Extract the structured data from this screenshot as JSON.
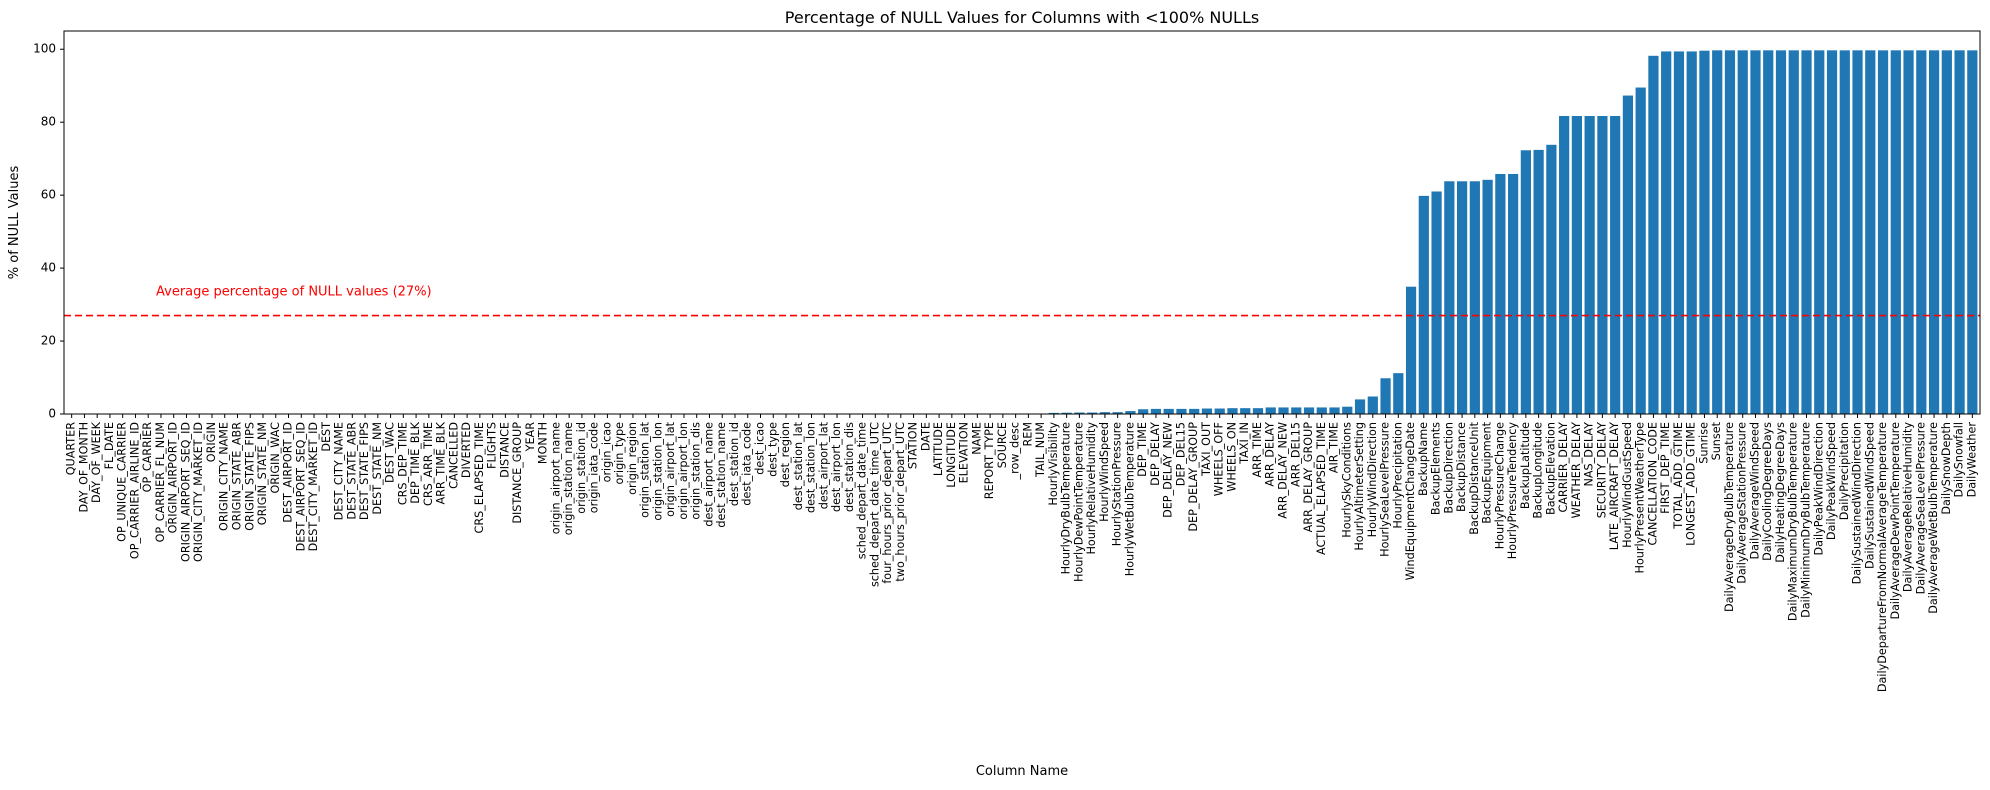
{
  "chart_data": {
    "type": "bar",
    "title": "Percentage of NULL Values for Columns with <100% NULLs",
    "xlabel": "Column Name",
    "ylabel": "% of NULL Values",
    "ylim": [
      0,
      105
    ],
    "yticks": [
      0,
      20,
      40,
      60,
      80,
      100
    ],
    "grid": false,
    "bar_color": "#1f77b4",
    "reference_line": {
      "value": 27,
      "style": "dashed",
      "color": "#ff0000",
      "label": "Average percentage of NULL values (27%)"
    },
    "categories": [
      "QUARTER",
      "DAY_OF_MONTH",
      "DAY_OF_WEEK",
      "FL_DATE",
      "OP_UNIQUE_CARRIER",
      "OP_CARRIER_AIRLINE_ID",
      "OP_CARRIER",
      "OP_CARRIER_FL_NUM",
      "ORIGIN_AIRPORT_ID",
      "ORIGIN_AIRPORT_SEQ_ID",
      "ORIGIN_CITY_MARKET_ID",
      "ORIGIN",
      "ORIGIN_CITY_NAME",
      "ORIGIN_STATE_ABR",
      "ORIGIN_STATE_FIPS",
      "ORIGIN_STATE_NM",
      "ORIGIN_WAC",
      "DEST_AIRPORT_ID",
      "DEST_AIRPORT_SEQ_ID",
      "DEST_CITY_MARKET_ID",
      "DEST",
      "DEST_CITY_NAME",
      "DEST_STATE_ABR",
      "DEST_STATE_FIPS",
      "DEST_STATE_NM",
      "DEST_WAC",
      "CRS_DEP_TIME",
      "DEP_TIME_BLK",
      "CRS_ARR_TIME",
      "ARR_TIME_BLK",
      "CANCELLED",
      "DIVERTED",
      "CRS_ELAPSED_TIME",
      "FLIGHTS",
      "DISTANCE",
      "DISTANCE_GROUP",
      "YEAR",
      "MONTH",
      "origin_airport_name",
      "origin_station_name",
      "origin_station_id",
      "origin_iata_code",
      "origin_icao",
      "origin_type",
      "origin_region",
      "origin_station_lat",
      "origin_station_lon",
      "origin_airport_lat",
      "origin_airport_lon",
      "origin_station_dis",
      "dest_airport_name",
      "dest_station_name",
      "dest_station_id",
      "dest_iata_code",
      "dest_icao",
      "dest_type",
      "dest_region",
      "dest_station_lat",
      "dest_station_lon",
      "dest_airport_lat",
      "dest_airport_lon",
      "dest_station_dis",
      "sched_depart_date_time",
      "sched_depart_date_time_UTC",
      "four_hours_prior_depart_UTC",
      "two_hours_prior_depart_UTC",
      "STATION",
      "DATE",
      "LATITUDE",
      "LONGITUDE",
      "ELEVATION",
      "NAME",
      "REPORT_TYPE",
      "SOURCE",
      "_row_desc",
      "REM",
      "TAIL_NUM",
      "HourlyVisibility",
      "HourlyDryBulbTemperature",
      "HourlyDewPointTemperature",
      "HourlyRelativeHumidity",
      "HourlyWindSpeed",
      "HourlyStationPressure",
      "HourlyWetBulbTemperature",
      "DEP_TIME",
      "DEP_DELAY",
      "DEP_DELAY_NEW",
      "DEP_DEL15",
      "DEP_DELAY_GROUP",
      "TAXI_OUT",
      "WHEELS_OFF",
      "WHEELS_ON",
      "TAXI_IN",
      "ARR_TIME",
      "ARR_DELAY",
      "ARR_DELAY_NEW",
      "ARR_DEL15",
      "ARR_DELAY_GROUP",
      "ACTUAL_ELAPSED_TIME",
      "AIR_TIME",
      "HourlySkyConditions",
      "HourlyAltimeterSetting",
      "HourlyWindDirection",
      "HourlySeaLevelPressure",
      "HourlyPrecipitation",
      "WindEquipmentChangeDate",
      "BackupName",
      "BackupElements",
      "BackupDirection",
      "BackupDistance",
      "BackupDistanceUnit",
      "BackupEquipment",
      "HourlyPressureChange",
      "HourlyPressureTendency",
      "BackupLatitude",
      "BackupLongitude",
      "BackupElevation",
      "CARRIER_DELAY",
      "WEATHER_DELAY",
      "NAS_DELAY",
      "SECURITY_DELAY",
      "LATE_AIRCRAFT_DELAY",
      "HourlyWindGustSpeed",
      "HourlyPresentWeatherType",
      "CANCELLATION_CODE",
      "FIRST_DEP_TIME",
      "TOTAL_ADD_GTIME",
      "LONGEST_ADD_GTIME",
      "Sunrise",
      "Sunset",
      "DailyAverageDryBulbTemperature",
      "DailyAverageStationPressure",
      "DailyAverageWindSpeed",
      "DailyCoolingDegreeDays",
      "DailyHeatingDegreeDays",
      "DailyMaximumDryBulbTemperature",
      "DailyMinimumDryBulbTemperature",
      "DailyPeakWindDirection",
      "DailyPeakWindSpeed",
      "DailyPrecipitation",
      "DailySustainedWindDirection",
      "DailySustainedWindSpeed",
      "DailyDepartureFromNormalAverageTemperature",
      "DailyAverageDewPointTemperature",
      "DailyAverageRelativeHumidity",
      "DailyAverageSeaLevelPressure",
      "DailyAverageWetBulbTemperature",
      "DailySnowDepth",
      "DailySnowfall",
      "DailyWeather"
    ],
    "values": [
      0,
      0,
      0,
      0,
      0,
      0,
      0,
      0,
      0,
      0,
      0,
      0,
      0,
      0,
      0,
      0,
      0,
      0,
      0,
      0,
      0,
      0,
      0,
      0,
      0,
      0,
      0,
      0,
      0,
      0,
      0,
      0,
      0,
      0,
      0,
      0,
      0,
      0,
      0,
      0,
      0,
      0,
      0,
      0,
      0,
      0,
      0,
      0,
      0,
      0,
      0,
      0,
      0,
      0,
      0,
      0,
      0,
      0,
      0,
      0,
      0,
      0,
      0,
      0,
      0,
      0,
      0,
      0,
      0,
      0,
      0,
      0,
      0,
      0,
      0,
      0,
      0.05,
      0.3,
      0.35,
      0.4,
      0.4,
      0.5,
      0.5,
      0.8,
      1.3,
      1.4,
      1.4,
      1.4,
      1.4,
      1.5,
      1.5,
      1.6,
      1.6,
      1.6,
      1.8,
      1.8,
      1.8,
      1.8,
      1.8,
      1.8,
      2.0,
      4.0,
      4.8,
      9.8,
      11.2,
      34.9,
      59.8,
      61.0,
      63.8,
      63.8,
      63.8,
      64.2,
      65.8,
      65.8,
      72.3,
      72.4,
      73.8,
      81.7,
      81.7,
      81.7,
      81.7,
      81.7,
      87.3,
      89.5,
      98.2,
      99.4,
      99.4,
      99.4,
      99.6,
      99.7,
      99.7,
      99.7,
      99.7,
      99.7,
      99.7,
      99.7,
      99.7,
      99.7,
      99.7,
      99.7,
      99.7,
      99.7,
      99.7,
      99.7,
      99.7,
      99.7,
      99.7,
      99.7,
      99.7,
      99.7
    ]
  }
}
